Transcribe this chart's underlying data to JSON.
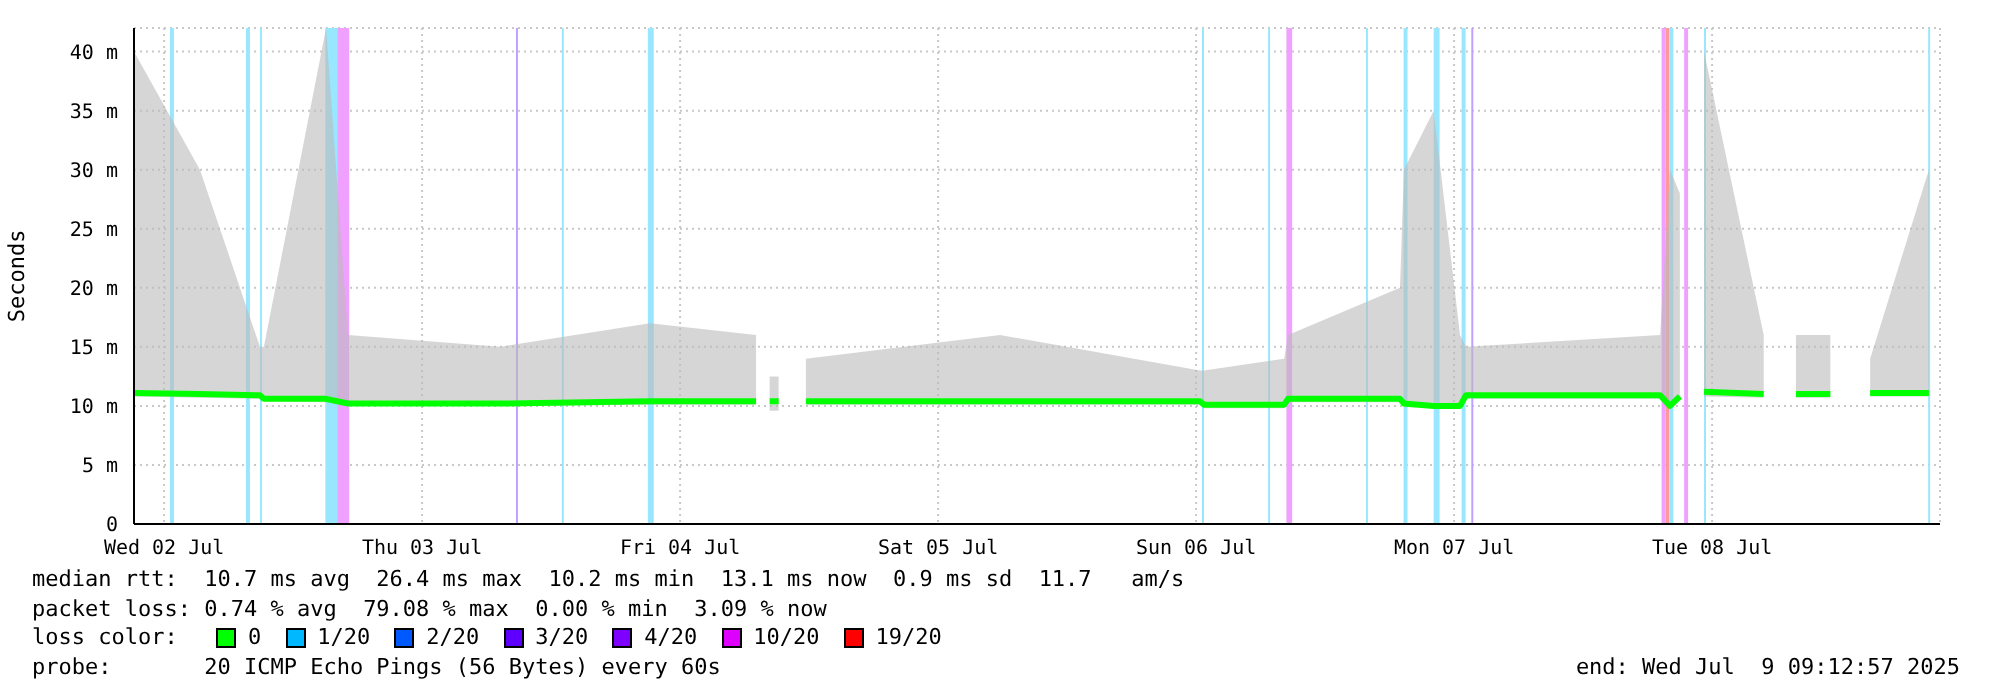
{
  "chart_data": {
    "type": "line",
    "ylabel": "Seconds",
    "xlim": [
      "2025-07-02T09:12",
      "2025-07-09T09:12"
    ],
    "xticks": [
      {
        "value": "2025-07-02T12:00",
        "label": "Wed 02 Jul"
      },
      {
        "value": "2025-07-03T12:00",
        "label": "Thu 03 Jul"
      },
      {
        "value": "2025-07-04T12:00",
        "label": "Fri 04 Jul"
      },
      {
        "value": "2025-07-05T12:00",
        "label": "Sat 05 Jul"
      },
      {
        "value": "2025-07-06T12:00",
        "label": "Sun 06 Jul"
      },
      {
        "value": "2025-07-07T12:00",
        "label": "Mon 07 Jul"
      },
      {
        "value": "2025-07-08T12:00",
        "label": "Tue 08 Jul"
      }
    ],
    "ylim": [
      0,
      42
    ],
    "yticks": [
      0,
      {
        "value": 5,
        "label": "5 m"
      },
      {
        "value": 10,
        "label": "10 m"
      },
      {
        "value": 15,
        "label": "15 m"
      },
      {
        "value": 20,
        "label": "20 m"
      },
      {
        "value": 25,
        "label": "25 m"
      },
      {
        "value": 30,
        "label": "30 m"
      },
      {
        "value": 35,
        "label": "35 m"
      },
      {
        "value": 40,
        "label": "40 m"
      }
    ],
    "x": [
      "2025-07-02T09:12",
      "2025-07-02T15:20",
      "2025-07-02T20:55",
      "2025-07-02T21:17",
      "2025-07-03T03:04",
      "2025-07-03T05:06",
      "2025-07-03T19:15",
      "2025-07-04T09:12",
      "2025-07-04T19:04",
      "2025-07-04T20:00",
      "2025-07-04T20:20",
      "2025-07-04T21:10",
      "2025-07-04T21:30",
      "2025-07-04T23:42",
      "2025-07-05T17:46",
      "2025-07-06T12:22",
      "2025-07-06T12:44",
      "2025-07-06T20:12",
      "2025-07-06T20:33",
      "2025-07-07T06:58",
      "2025-07-07T07:20",
      "2025-07-07T10:06",
      "2025-07-07T12:33",
      "2025-07-07T13:06",
      "2025-07-08T07:10",
      "2025-07-08T08:05",
      "2025-07-08T09:00",
      "2025-07-08T09:40",
      "2025-07-08T11:15",
      "2025-07-08T16:48",
      "2025-07-08T17:54",
      "2025-07-08T19:48",
      "2025-07-08T23:00",
      "2025-07-08T23:54",
      "2025-07-09T02:42",
      "2025-07-09T08:10"
    ],
    "series": [
      {
        "color": "#00ff00",
        "values": [
          11.1,
          11.0,
          10.9,
          10.6,
          10.6,
          10.2,
          10.2,
          10.4,
          10.4,
          null,
          10.4,
          10.4,
          null,
          10.4,
          10.4,
          10.4,
          10.1,
          10.1,
          10.6,
          10.6,
          10.2,
          10.0,
          10.0,
          10.9,
          10.9,
          10.0,
          10.8,
          null,
          11.2,
          11.0,
          null,
          11.0,
          11.0,
          null,
          11.1,
          11.1
        ],
        "lower": [
          10.8,
          10.7,
          10.6,
          10.4,
          10.3,
          10.0,
          10.0,
          10.1,
          10.1,
          null,
          9.6,
          9.6,
          null,
          10.1,
          10.1,
          10.1,
          9.8,
          9.8,
          10.3,
          10.3,
          9.9,
          9.8,
          9.8,
          10.6,
          10.6,
          9.7,
          10.5,
          null,
          10.8,
          10.7,
          null,
          10.7,
          10.7,
          null,
          10.8,
          10.8
        ],
        "upper": [
          40,
          30,
          15,
          15,
          42,
          16,
          15,
          17,
          16,
          null,
          12.5,
          12.5,
          null,
          14,
          16,
          13,
          13,
          14,
          16,
          20,
          30,
          35,
          16,
          15,
          16,
          30,
          28,
          null,
          40,
          16,
          null,
          16,
          16,
          null,
          14,
          30
        ]
      }
    ],
    "bands": [
      {
        "axis": "x",
        "from": "2025-07-02T12:33",
        "to": "2025-07-02T12:55",
        "color": "#99e6ff"
      },
      {
        "axis": "x",
        "from": "2025-07-02T19:37",
        "to": "2025-07-02T19:59",
        "color": "#99e6ff"
      },
      {
        "axis": "x",
        "from": "2025-07-02T20:55",
        "to": "2025-07-02T21:06",
        "color": "#99e6ff"
      },
      {
        "axis": "x",
        "from": "2025-07-03T03:00",
        "to": "2025-07-03T04:06",
        "color": "#99e6ff"
      },
      {
        "axis": "x",
        "from": "2025-07-03T04:06",
        "to": "2025-07-03T05:13",
        "color": "#f0a0ff"
      },
      {
        "axis": "x",
        "from": "2025-07-03T20:44",
        "to": "2025-07-03T20:55",
        "color": "#c0a0ff"
      },
      {
        "axis": "x",
        "from": "2025-07-04T01:00",
        "to": "2025-07-04T01:11",
        "color": "#99e6ff"
      },
      {
        "axis": "x",
        "from": "2025-07-04T09:00",
        "to": "2025-07-04T09:33",
        "color": "#99e6ff"
      },
      {
        "axis": "x",
        "from": "2025-07-06T12:33",
        "to": "2025-07-06T12:44",
        "color": "#99e6ff"
      },
      {
        "axis": "x",
        "from": "2025-07-06T18:42",
        "to": "2025-07-06T18:53",
        "color": "#99e6ff"
      },
      {
        "axis": "x",
        "from": "2025-07-06T20:24",
        "to": "2025-07-06T20:56",
        "color": "#f0a0ff"
      },
      {
        "axis": "x",
        "from": "2025-07-07T03:48",
        "to": "2025-07-07T03:59",
        "color": "#99e6ff"
      },
      {
        "axis": "x",
        "from": "2025-07-07T07:18",
        "to": "2025-07-07T07:40",
        "color": "#99e6ff"
      },
      {
        "axis": "x",
        "from": "2025-07-07T10:06",
        "to": "2025-07-07T10:39",
        "color": "#99e6ff"
      },
      {
        "axis": "x",
        "from": "2025-07-07T12:42",
        "to": "2025-07-07T13:04",
        "color": "#99e6ff"
      },
      {
        "axis": "x",
        "from": "2025-07-07T13:36",
        "to": "2025-07-07T13:47",
        "color": "#c0a0ff"
      },
      {
        "axis": "x",
        "from": "2025-07-08T07:18",
        "to": "2025-07-08T07:40",
        "color": "#f0a0ff"
      },
      {
        "axis": "x",
        "from": "2025-07-08T07:40",
        "to": "2025-07-08T08:02",
        "color": "#ff9999"
      },
      {
        "axis": "x",
        "from": "2025-07-08T08:02",
        "to": "2025-07-08T08:24",
        "color": "#99e6ff"
      },
      {
        "axis": "x",
        "from": "2025-07-08T09:24",
        "to": "2025-07-08T09:46",
        "color": "#f0a0ff"
      },
      {
        "axis": "x",
        "from": "2025-07-08T11:15",
        "to": "2025-07-08T11:26",
        "color": "#99e6ff"
      },
      {
        "axis": "x",
        "from": "2025-07-09T08:06",
        "to": "2025-07-09T08:17",
        "color": "#99e6ff"
      }
    ],
    "grid": true,
    "annotations": [
      "median rtt:  10.7 ms avg  26.4 ms max  10.2 ms min  13.1 ms now  0.9 ms sd  11.7   am/s",
      "packet loss: 0.74 % avg  79.08 % max  0.00 % min  3.09 % now",
      "loss color:",
      "0",
      "1/20",
      "2/20",
      "3/20",
      "4/20",
      "10/20",
      "19/20",
      "probe:       20 ICMP Echo Pings (56 Bytes) every 60s",
      "end: Wed Jul  9 09:12:57 2025"
    ]
  }
}
